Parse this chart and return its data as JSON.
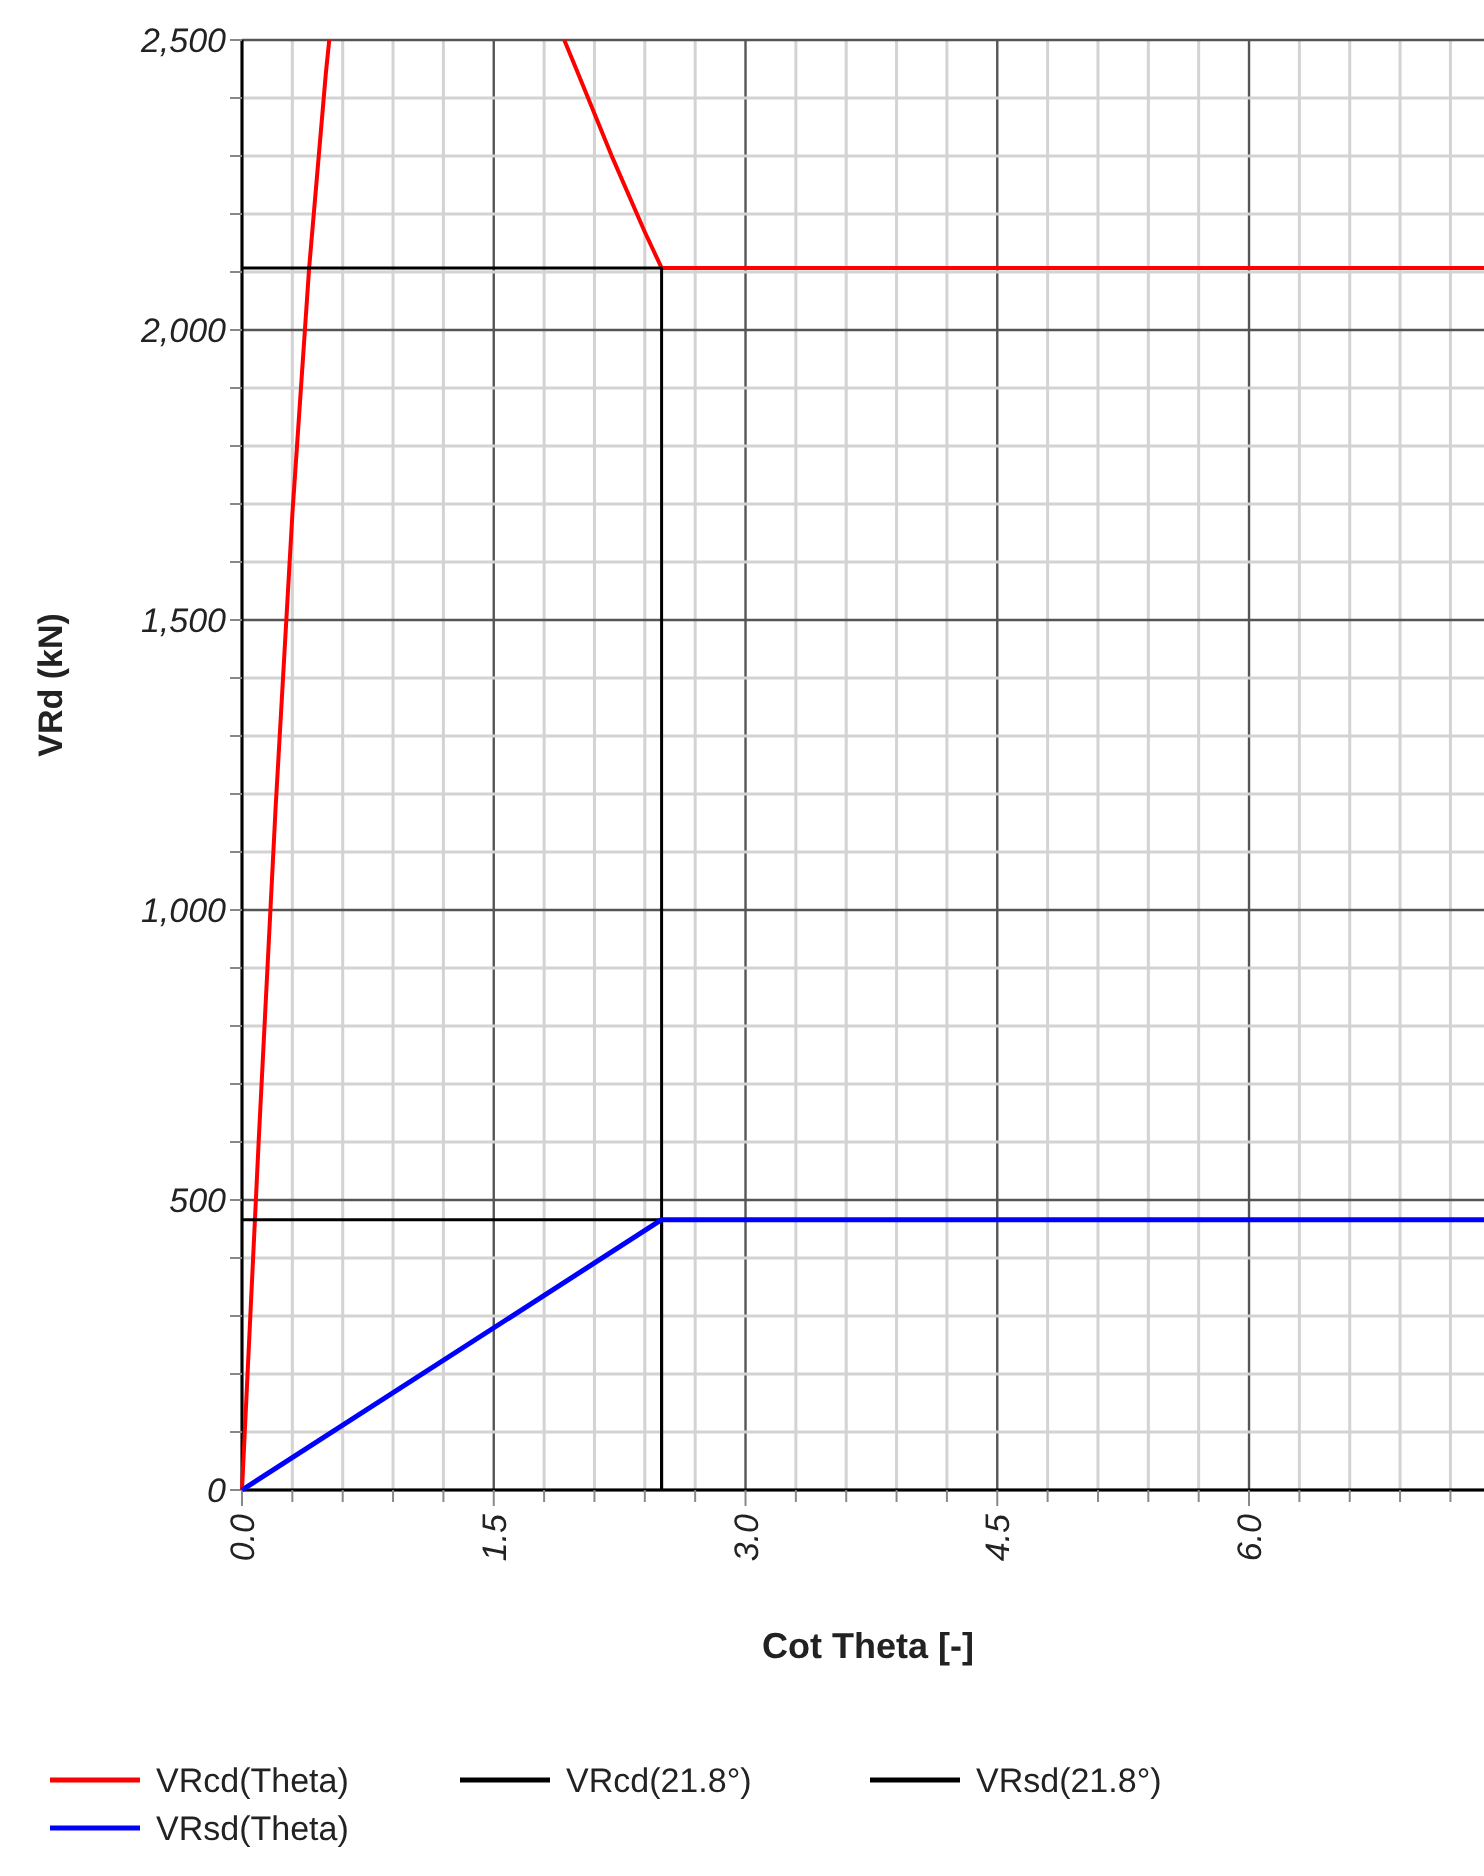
{
  "chart_data": {
    "type": "line",
    "xlabel": "Cot Theta [-]",
    "ylabel": "VRd (kN)",
    "xlim": [
      0,
      7.4
    ],
    "ylim": [
      0,
      2500
    ],
    "xticks": [
      {
        "value": 0,
        "label": "0.0"
      },
      {
        "value": 0.3,
        "label": null
      },
      {
        "value": 0.6,
        "label": null
      },
      {
        "value": 0.9,
        "label": null
      },
      {
        "value": 1.2,
        "label": null
      },
      {
        "value": 1.5,
        "label": "1.5"
      },
      {
        "value": 1.8,
        "label": null
      },
      {
        "value": 2.1,
        "label": null
      },
      {
        "value": 2.4,
        "label": null
      },
      {
        "value": 2.7,
        "label": null
      },
      {
        "value": 3,
        "label": "3.0"
      },
      {
        "value": 3.3,
        "label": null
      },
      {
        "value": 3.6,
        "label": null
      },
      {
        "value": 3.9,
        "label": null
      },
      {
        "value": 4.2,
        "label": null
      },
      {
        "value": 4.5,
        "label": "4.5"
      },
      {
        "value": 4.8,
        "label": null
      },
      {
        "value": 5.1,
        "label": null
      },
      {
        "value": 5.4,
        "label": null
      },
      {
        "value": 5.7,
        "label": null
      },
      {
        "value": 6,
        "label": "6.0"
      },
      {
        "value": 6.3,
        "label": null
      },
      {
        "value": 6.6,
        "label": null
      },
      {
        "value": 6.9,
        "label": null
      },
      {
        "value": 7.2,
        "label": null
      }
    ],
    "yticks": [
      0,
      {
        "value": 100,
        "label": null
      },
      {
        "value": 200,
        "label": null
      },
      {
        "value": 300,
        "label": null
      },
      {
        "value": 400,
        "label": null
      },
      500,
      {
        "value": 600,
        "label": null
      },
      {
        "value": 700,
        "label": null
      },
      {
        "value": 800,
        "label": null
      },
      {
        "value": 900,
        "label": null
      },
      {
        "value": 1000,
        "label": "1,000"
      },
      {
        "value": 1100,
        "label": null
      },
      {
        "value": 1200,
        "label": null
      },
      {
        "value": 1300,
        "label": null
      },
      {
        "value": 1400,
        "label": null
      },
      {
        "value": 1500,
        "label": "1,500"
      },
      {
        "value": 1600,
        "label": null
      },
      {
        "value": 1700,
        "label": null
      },
      {
        "value": 1800,
        "label": null
      },
      {
        "value": 1900,
        "label": null
      },
      {
        "value": 2000,
        "label": "2,000"
      },
      {
        "value": 2100,
        "label": null
      },
      {
        "value": 2200,
        "label": null
      },
      {
        "value": 2300,
        "label": null
      },
      {
        "value": 2400,
        "label": null
      },
      {
        "value": 2500,
        "label": "2,500"
      }
    ],
    "grid": true,
    "legend": "bottom",
    "line_style": "solid",
    "series": [
      {
        "name": "VRcd(Theta)",
        "color": "#ff0000",
        "x": [
          0,
          0.1,
          0.2,
          0.3,
          0.4,
          0.5,
          0.52,
          1.2,
          1.92,
          2.0,
          2.2,
          2.4,
          2.5,
          7.4
        ],
        "values": [
          0,
          605,
          1175,
          1682,
          2107,
          2444,
          2500,
          null,
          2500,
          2444,
          2302,
          2169,
          2107,
          2107
        ]
      },
      {
        "name": "VRcd(21.8°)",
        "color": "#000000",
        "x": [
          0,
          2.5,
          2.5
        ],
        "values": [
          2107,
          2107,
          0
        ]
      },
      {
        "name": "VRsd(21.8°)",
        "color": "#000000",
        "x": [
          0,
          2.5,
          2.5
        ],
        "values": [
          466,
          466,
          0
        ]
      },
      {
        "name": "VRsd(Theta)",
        "color": "#0000ff",
        "x": [
          0,
          2.5,
          7.4
        ],
        "values": [
          0,
          466,
          466
        ]
      }
    ]
  }
}
